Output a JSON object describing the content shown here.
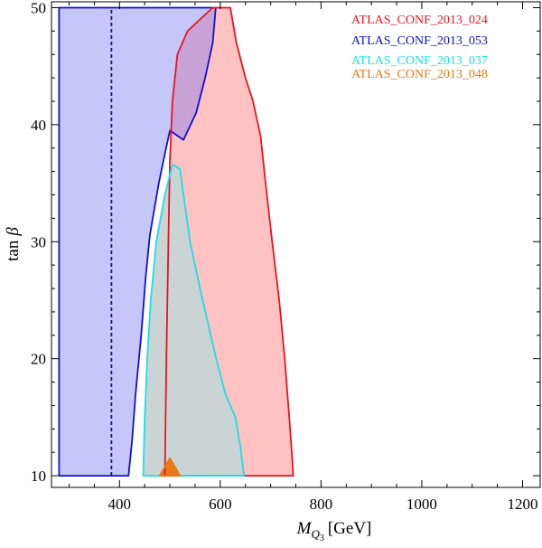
{
  "chart_data": {
    "type": "area",
    "xlabel_main": "M",
    "xlabel_sub": "Q",
    "xlabel_subsub": "3",
    "xlabel_unit": "[GeV]",
    "ylabel_main": "tan",
    "ylabel_symbol": "β",
    "xlim": [
      265,
      1235
    ],
    "ylim": [
      9,
      50.5
    ],
    "x_ticks": [
      400,
      600,
      800,
      1000,
      1200
    ],
    "y_ticks": [
      10,
      20,
      30,
      40,
      50
    ],
    "x_tick_labels": [
      "400",
      "600",
      "800",
      "1000",
      "1200"
    ],
    "y_tick_labels": [
      "10",
      "20",
      "30",
      "40",
      "50"
    ],
    "grid": false,
    "legend_position": "top-right",
    "series": [
      {
        "name": "ATLAS_CONF_2013_024",
        "color": "#e8141e",
        "fill": "#ffc2c2",
        "polygon": [
          [
            490,
            10
          ],
          [
            493,
            20
          ],
          [
            497,
            30
          ],
          [
            500,
            37
          ],
          [
            505,
            42
          ],
          [
            515,
            46
          ],
          [
            535,
            48
          ],
          [
            560,
            49
          ],
          [
            585,
            50
          ],
          [
            620,
            50
          ],
          [
            632,
            47
          ],
          [
            650,
            44
          ],
          [
            665,
            42
          ],
          [
            680,
            39
          ],
          [
            690,
            35
          ],
          [
            703,
            30
          ],
          [
            717,
            25
          ],
          [
            728,
            20
          ],
          [
            737,
            15
          ],
          [
            742,
            12
          ],
          [
            745,
            10
          ]
        ]
      },
      {
        "name": "ATLAS_CONF_2013_053",
        "color": "#1010d0",
        "fill": "#c5c7f8",
        "polygon": [
          [
            280,
            10
          ],
          [
            280,
            50
          ],
          [
            591,
            50
          ],
          [
            585,
            47
          ],
          [
            570,
            44
          ],
          [
            552,
            41
          ],
          [
            527,
            38.7
          ],
          [
            500,
            39.5
          ],
          [
            490,
            37.5
          ],
          [
            478,
            35
          ],
          [
            468,
            32.5
          ],
          [
            460,
            30.5
          ],
          [
            452,
            27
          ],
          [
            443,
            22
          ],
          [
            432,
            17
          ],
          [
            425,
            13
          ],
          [
            418,
            10
          ]
        ]
      },
      {
        "name": "ATLAS_CONF_2013_037",
        "color": "#19e0e6",
        "fill": "#cbd4d4",
        "polygon": [
          [
            447,
            10
          ],
          [
            450,
            15
          ],
          [
            455,
            20
          ],
          [
            462,
            25
          ],
          [
            473,
            30
          ],
          [
            490,
            34
          ],
          [
            505,
            36.6
          ],
          [
            520,
            36.2
          ],
          [
            540,
            30
          ],
          [
            565,
            25
          ],
          [
            592,
            20
          ],
          [
            610,
            17
          ],
          [
            630,
            15
          ],
          [
            640,
            12.5
          ],
          [
            647,
            10
          ]
        ]
      },
      {
        "name": "ATLAS_CONF_2013_048",
        "color": "#e87a1a",
        "fill": "#e87a1a",
        "polygon": [
          [
            480,
            10
          ],
          [
            500,
            11.5
          ],
          [
            520,
            10
          ]
        ]
      }
    ],
    "dashed_line": {
      "x": 384,
      "color": "#1010a0"
    }
  }
}
